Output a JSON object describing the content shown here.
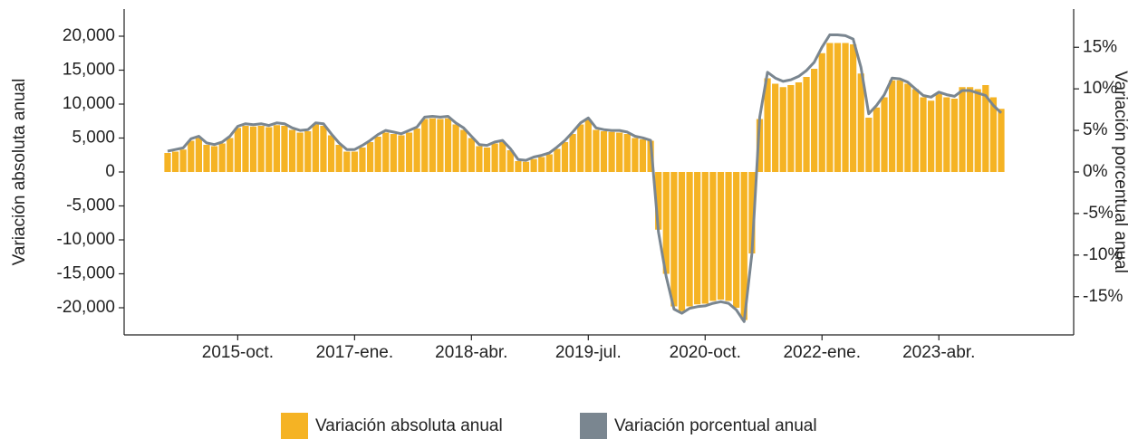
{
  "chart_data": {
    "type": "bar_line",
    "y_label": "Variación absoluta anual",
    "y2_label": "Variación porcentual anual",
    "categories": [
      null,
      null,
      null,
      null,
      null,
      null,
      null,
      null,
      null,
      "2015-oct.",
      null,
      null,
      null,
      null,
      null,
      null,
      null,
      null,
      null,
      null,
      null,
      null,
      null,
      null,
      "2017-ene.",
      null,
      null,
      null,
      null,
      null,
      null,
      null,
      null,
      null,
      null,
      null,
      null,
      null,
      null,
      "2018-abr.",
      null,
      null,
      null,
      null,
      null,
      null,
      null,
      null,
      null,
      null,
      null,
      null,
      null,
      null,
      "2019-jul.",
      null,
      null,
      null,
      null,
      null,
      null,
      null,
      null,
      null,
      null,
      null,
      null,
      null,
      null,
      "2020-oct.",
      null,
      null,
      null,
      null,
      null,
      null,
      null,
      null,
      null,
      null,
      null,
      null,
      null,
      null,
      "2022-ene.",
      null,
      null,
      null,
      null,
      null,
      null,
      null,
      null,
      null,
      null,
      null,
      null,
      null,
      null,
      "2023-abr.",
      null,
      null,
      null,
      null,
      null,
      null,
      null,
      null
    ],
    "series": [
      {
        "name": "Variación absoluta anual",
        "color": "#f5b324",
        "kind": "bar",
        "values": [
          2800,
          3000,
          3300,
          4600,
          5000,
          4000,
          3800,
          4200,
          5000,
          6500,
          6800,
          6700,
          6800,
          6600,
          6900,
          6800,
          6200,
          5800,
          6000,
          7000,
          6800,
          5400,
          4000,
          3000,
          3000,
          3600,
          4400,
          5200,
          5800,
          5600,
          5400,
          5800,
          6400,
          7800,
          7900,
          7800,
          7900,
          7000,
          6200,
          5000,
          3800,
          3600,
          4200,
          4400,
          3200,
          1600,
          1500,
          1900,
          2200,
          2600,
          3400,
          4400,
          5600,
          7000,
          7700,
          6200,
          6000,
          5900,
          5800,
          5600,
          5000,
          4800,
          4600,
          -8500,
          -15000,
          -19800,
          -20500,
          -19800,
          -19500,
          -19400,
          -19000,
          -18800,
          -19000,
          -20000,
          -21800,
          -12000,
          7800,
          13800,
          13000,
          12500,
          12800,
          13200,
          14000,
          15200,
          17500,
          19000,
          19000,
          19000,
          18800,
          14500,
          8000,
          9500,
          11000,
          13500,
          13500,
          13000,
          12200,
          11000,
          10500,
          11500,
          11000,
          10800,
          12500,
          12500,
          12200,
          12800,
          11000,
          9300
        ]
      },
      {
        "name": "Variación porcentual anual",
        "color": "#7a8690",
        "kind": "line",
        "axis": "y2",
        "values": [
          2.5,
          2.7,
          2.9,
          4.0,
          4.3,
          3.5,
          3.3,
          3.6,
          4.3,
          5.5,
          5.8,
          5.7,
          5.8,
          5.6,
          5.9,
          5.8,
          5.3,
          5.0,
          5.1,
          5.9,
          5.8,
          4.6,
          3.5,
          2.7,
          2.7,
          3.2,
          3.8,
          4.5,
          5.0,
          4.8,
          4.6,
          5.0,
          5.4,
          6.6,
          6.7,
          6.6,
          6.7,
          5.9,
          5.3,
          4.3,
          3.3,
          3.2,
          3.6,
          3.8,
          2.8,
          1.5,
          1.4,
          1.8,
          2.0,
          2.3,
          3.0,
          3.8,
          4.8,
          5.9,
          6.5,
          5.3,
          5.1,
          5.0,
          5.0,
          4.8,
          4.3,
          4.1,
          3.8,
          -7.2,
          -12.6,
          -16.5,
          -17.0,
          -16.4,
          -16.2,
          -16.1,
          -15.8,
          -15.6,
          -15.8,
          -16.6,
          -18.0,
          -9.8,
          6.6,
          12.0,
          11.3,
          10.9,
          11.1,
          11.5,
          12.2,
          13.2,
          15.0,
          16.5,
          16.5,
          16.4,
          16.0,
          12.6,
          7.0,
          8.0,
          9.3,
          11.3,
          11.2,
          10.8,
          10.0,
          9.2,
          9.0,
          9.6,
          9.3,
          9.1,
          9.8,
          9.8,
          9.5,
          9.2,
          8.0,
          7.1
        ]
      }
    ],
    "ylim": [
      -24000,
      24000
    ],
    "yticks": [
      {
        "value": -20000,
        "label": "-20,000"
      },
      {
        "value": -15000,
        "label": "-15,000"
      },
      {
        "value": -10000,
        "label": "-10,000"
      },
      {
        "value": -5000,
        "label": "-5,000"
      },
      0,
      {
        "value": 5000,
        "label": "5,000"
      },
      {
        "value": 10000,
        "label": "10,000"
      },
      {
        "value": 15000,
        "label": "15,000"
      },
      {
        "value": 20000,
        "label": "20,000"
      }
    ],
    "y2lim": [
      -19.6,
      19.6
    ],
    "y2ticks": [
      {
        "value": -15,
        "label": "-15%"
      },
      {
        "value": -10,
        "label": "-10%"
      },
      {
        "value": -5,
        "label": "-5%"
      },
      {
        "value": 0,
        "label": "0%"
      },
      {
        "value": 5,
        "label": "5%"
      },
      {
        "value": 10,
        "label": "10%"
      },
      {
        "value": 15,
        "label": "15%"
      }
    ],
    "legend": "bottom"
  }
}
